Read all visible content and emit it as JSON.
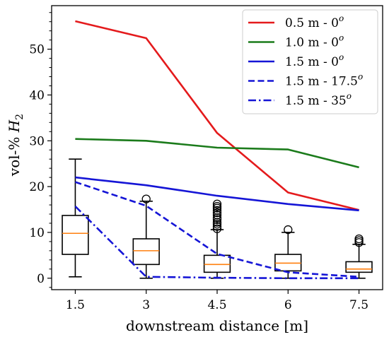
{
  "chart_data": {
    "type": "line",
    "xlabel": "downstream distance [m]",
    "ylabel_prefix": "vol-%",
    "ylabel_symbol": "H",
    "ylabel_subscript": "2",
    "xlim": [
      1,
      8
    ],
    "ylim": [
      -2.5,
      59.5
    ],
    "x_ticks": [
      {
        "value": 1.5,
        "label": "1.5"
      },
      {
        "value": 3,
        "label": "3"
      },
      {
        "value": 4.5,
        "label": "4.5"
      },
      {
        "value": 6,
        "label": "6"
      },
      {
        "value": 7.5,
        "label": "7.5"
      }
    ],
    "y_ticks": [
      {
        "value": 0,
        "label": "0"
      },
      {
        "value": 10,
        "label": "10"
      },
      {
        "value": 20,
        "label": "20"
      },
      {
        "value": 30,
        "label": "30"
      },
      {
        "value": 40,
        "label": "40"
      },
      {
        "value": 50,
        "label": "50"
      }
    ],
    "y_minor_step": 2,
    "grid": false,
    "legend_position": "top-right",
    "series": [
      {
        "id": "s1",
        "label_main": "0.5 m - 0",
        "label_sup": "o",
        "color": "#e41a1c",
        "style": "solid",
        "x": [
          1.5,
          3,
          4.5,
          6,
          7.5
        ],
        "y": [
          56.1,
          52.4,
          31.7,
          18.7,
          14.9
        ]
      },
      {
        "id": "s2",
        "label_main": "1.0 m - 0",
        "label_sup": "o",
        "color": "#1b7b1b",
        "style": "solid",
        "x": [
          1.5,
          3,
          4.5,
          6,
          7.5
        ],
        "y": [
          30.4,
          30.0,
          28.5,
          28.1,
          24.2
        ]
      },
      {
        "id": "s3",
        "label_main": "1.5 m - 0",
        "label_sup": "o",
        "color": "#1515d6",
        "style": "solid",
        "x": [
          1.5,
          3,
          4.5,
          6,
          7.5
        ],
        "y": [
          22.0,
          20.3,
          18.0,
          16.2,
          14.8
        ]
      },
      {
        "id": "s4",
        "label_main": "1.5 m - 17.5",
        "label_sup": "o",
        "color": "#1515d6",
        "style": "dashed",
        "x": [
          1.5,
          3,
          4.5,
          6,
          7.5
        ],
        "y": [
          21.0,
          15.8,
          5.3,
          1.3,
          0.3
        ]
      },
      {
        "id": "s5",
        "label_main": "1.5 m - 35",
        "label_sup": "o",
        "color": "#1515d6",
        "style": "dashdot",
        "x": [
          1.5,
          3,
          4.5,
          6,
          7.5
        ],
        "y": [
          15.7,
          0.3,
          0.1,
          0.0,
          0.0
        ]
      }
    ],
    "boxplots": [
      {
        "x": 1.5,
        "whisker_low": 0.3,
        "q1": 5.2,
        "median": 9.8,
        "q3": 13.7,
        "whisker_high": 26.0,
        "fliers": []
      },
      {
        "x": 3,
        "whisker_low": 0.0,
        "q1": 3.0,
        "median": 6.0,
        "q3": 8.6,
        "whisker_high": 16.8,
        "fliers": [
          17.3
        ]
      },
      {
        "x": 4.5,
        "whisker_low": 0.0,
        "q1": 1.3,
        "median": 3.0,
        "q3": 5.0,
        "whisker_high": 10.6,
        "fliers": [
          10.8,
          11.3,
          11.8,
          12.2,
          12.8,
          13.2,
          13.8,
          14.3,
          14.8,
          15.3,
          15.7,
          16.2
        ]
      },
      {
        "x": 6,
        "whisker_low": 0.0,
        "q1": 1.6,
        "median": 3.3,
        "q3": 5.2,
        "whisker_high": 10.0,
        "fliers": [
          10.6
        ]
      },
      {
        "x": 7.5,
        "whisker_low": 0.0,
        "q1": 1.3,
        "median": 2.0,
        "q3": 3.6,
        "whisker_high": 7.4,
        "fliers": [
          7.8,
          8.2,
          8.6
        ]
      }
    ],
    "box_median_color": "#ff7f0e"
  }
}
